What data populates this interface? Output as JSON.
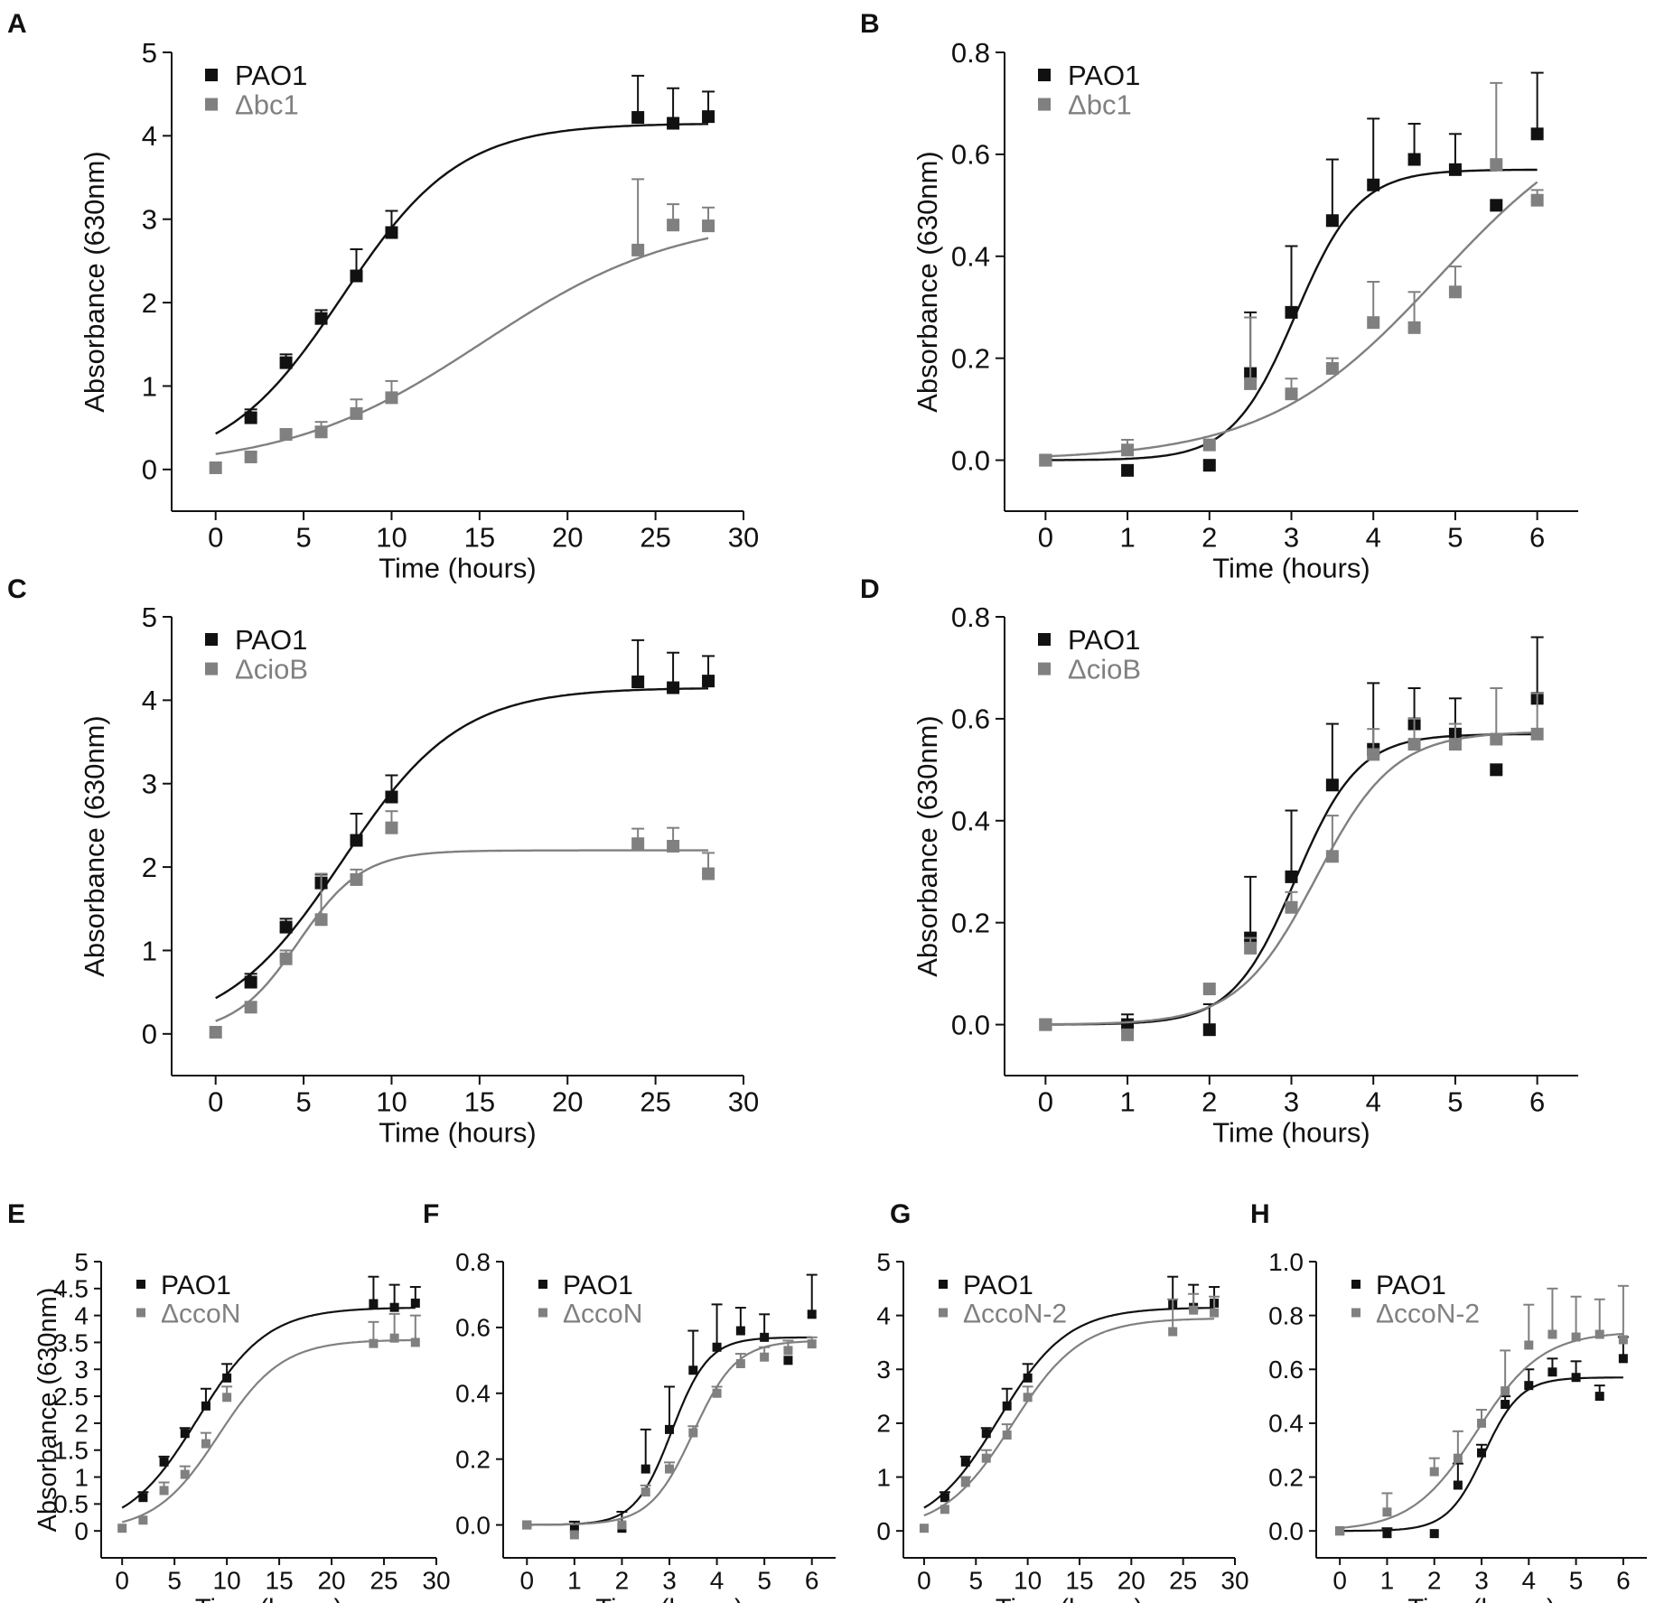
{
  "colors": {
    "pao1": "#111111",
    "mutant": "#808080",
    "axis": "#111111"
  },
  "chart_data": [
    {
      "panel": "A",
      "type": "scatter",
      "xlabel": "Time (hours)",
      "ylabel": "Absorbance (630nm)",
      "xlim": [
        -2.5,
        30
      ],
      "ylim": [
        -0.5,
        5
      ],
      "xticks": [
        0,
        5,
        10,
        15,
        20,
        25,
        30
      ],
      "xtick_labels": [
        "0",
        "5",
        "10",
        "15",
        "20",
        "25",
        "30"
      ],
      "yticks": [
        0,
        1,
        2,
        3,
        4,
        5
      ],
      "ytick_labels": [
        "0",
        "1",
        "2",
        "3",
        "4",
        "5"
      ],
      "legend": [
        "PAO1",
        "Δbc1"
      ],
      "series": [
        {
          "name": "PAO1",
          "x": [
            2,
            4,
            6,
            8,
            10,
            24,
            26,
            28
          ],
          "y": [
            0.62,
            1.28,
            1.81,
            2.32,
            2.84,
            4.22,
            4.15,
            4.23
          ],
          "err": [
            0.1,
            0.1,
            0.1,
            0.32,
            0.26,
            0.5,
            0.42,
            0.3
          ],
          "fit": {
            "bottom": 0,
            "top": 4.15,
            "x50": 7.2,
            "k": 0.3
          }
        },
        {
          "name": "Δbc1",
          "x": [
            0,
            2,
            4,
            6,
            8,
            10,
            24,
            26,
            28
          ],
          "y": [
            0.02,
            0.15,
            0.42,
            0.45,
            0.67,
            0.86,
            2.63,
            2.93,
            2.92
          ],
          "err": [
            0,
            0,
            0.06,
            0.12,
            0.17,
            0.2,
            0.85,
            0.25,
            0.22
          ],
          "fit": {
            "bottom": 0,
            "top": 3.05,
            "x50": 15.2,
            "k": 0.18
          }
        }
      ]
    },
    {
      "panel": "B",
      "type": "scatter",
      "xlabel": "Time (hours)",
      "ylabel": "Absorbance (630nm)",
      "xlim": [
        -0.5,
        6.5
      ],
      "ylim": [
        -0.1,
        0.8
      ],
      "xticks": [
        0,
        1,
        2,
        3,
        4,
        5,
        6
      ],
      "xtick_labels": [
        "0",
        "1",
        "2",
        "3",
        "4",
        "5",
        "6"
      ],
      "yticks": [
        0,
        0.2,
        0.4,
        0.6,
        0.8
      ],
      "ytick_labels": [
        "0.0",
        "0.2",
        "0.4",
        "0.6",
        "0.8"
      ],
      "legend": [
        "PAO1",
        "Δbc1"
      ],
      "series": [
        {
          "name": "PAO1",
          "x": [
            0,
            1,
            2,
            2.5,
            3,
            3.5,
            4,
            4.5,
            5,
            5.5,
            6
          ],
          "y": [
            0,
            -0.02,
            -0.01,
            0.17,
            0.29,
            0.47,
            0.54,
            0.59,
            0.57,
            0.5,
            0.64
          ],
          "err": [
            0,
            0,
            0,
            0.12,
            0.13,
            0.12,
            0.13,
            0.07,
            0.07,
            0,
            0.12
          ],
          "fit": {
            "bottom": 0,
            "top": 0.57,
            "x50": 3.05,
            "k": 2.6
          }
        },
        {
          "name": "Δbc1",
          "x": [
            0,
            1,
            2,
            2.5,
            3,
            3.5,
            4,
            4.5,
            5,
            5.5,
            6
          ],
          "y": [
            0,
            0.02,
            0.03,
            0.15,
            0.13,
            0.18,
            0.27,
            0.26,
            0.33,
            0.58,
            0.51
          ],
          "err": [
            0,
            0.02,
            0,
            0.13,
            0.03,
            0.02,
            0.08,
            0.07,
            0.05,
            0.16,
            0.02
          ],
          "fit": {
            "bottom": 0,
            "top": 0.72,
            "x50": 4.8,
            "k": 0.95
          }
        }
      ]
    },
    {
      "panel": "C",
      "type": "scatter",
      "xlabel": "Time (hours)",
      "ylabel": "Absorbance (630nm)",
      "xlim": [
        -2.5,
        30
      ],
      "ylim": [
        -0.5,
        5
      ],
      "xticks": [
        0,
        5,
        10,
        15,
        20,
        25,
        30
      ],
      "xtick_labels": [
        "0",
        "5",
        "10",
        "15",
        "20",
        "25",
        "30"
      ],
      "yticks": [
        0,
        1,
        2,
        3,
        4,
        5
      ],
      "ytick_labels": [
        "0",
        "1",
        "2",
        "3",
        "4",
        "5"
      ],
      "legend": [
        "PAO1",
        "ΔcioB"
      ],
      "series": [
        {
          "name": "PAO1",
          "x": [
            2,
            4,
            6,
            8,
            10,
            24,
            26,
            28
          ],
          "y": [
            0.62,
            1.28,
            1.81,
            2.32,
            2.84,
            4.22,
            4.15,
            4.23
          ],
          "err": [
            0.1,
            0.1,
            0.1,
            0.32,
            0.26,
            0.5,
            0.42,
            0.3
          ],
          "fit": {
            "bottom": 0,
            "top": 4.15,
            "x50": 7.2,
            "k": 0.3
          }
        },
        {
          "name": "ΔcioB",
          "x": [
            0,
            2,
            4,
            6,
            8,
            10,
            24,
            26,
            28
          ],
          "y": [
            0.02,
            0.32,
            0.9,
            1.37,
            1.85,
            2.47,
            2.28,
            2.25,
            1.92
          ],
          "err": [
            0,
            0,
            0.1,
            0.55,
            0.12,
            0.2,
            0.18,
            0.22,
            0.25
          ],
          "fit": {
            "bottom": 0,
            "top": 2.2,
            "x50": 4.7,
            "k": 0.55
          }
        }
      ]
    },
    {
      "panel": "D",
      "type": "scatter",
      "xlabel": "Time (hours)",
      "ylabel": "Absorbance (630nm)",
      "xlim": [
        -0.5,
        6.5
      ],
      "ylim": [
        -0.1,
        0.8
      ],
      "xticks": [
        0,
        1,
        2,
        3,
        4,
        5,
        6
      ],
      "xtick_labels": [
        "0",
        "1",
        "2",
        "3",
        "4",
        "5",
        "6"
      ],
      "yticks": [
        0,
        0.2,
        0.4,
        0.6,
        0.8
      ],
      "ytick_labels": [
        "0.0",
        "0.2",
        "0.4",
        "0.6",
        "0.8"
      ],
      "legend": [
        "PAO1",
        "ΔcioB"
      ],
      "series": [
        {
          "name": "PAO1",
          "x": [
            0,
            1,
            2,
            2.5,
            3,
            3.5,
            4,
            4.5,
            5,
            5.5,
            6
          ],
          "y": [
            0,
            0,
            -0.01,
            0.17,
            0.29,
            0.47,
            0.54,
            0.59,
            0.57,
            0.5,
            0.64
          ],
          "err": [
            0,
            0.02,
            0.05,
            0.12,
            0.13,
            0.12,
            0.13,
            0.07,
            0.07,
            0,
            0.12
          ],
          "fit": {
            "bottom": 0,
            "top": 0.57,
            "x50": 3.05,
            "k": 2.6
          }
        },
        {
          "name": "ΔcioB",
          "x": [
            0,
            1,
            2,
            2.5,
            3,
            3.5,
            4,
            4.5,
            5,
            5.5,
            6
          ],
          "y": [
            0,
            -0.02,
            0.07,
            0.15,
            0.23,
            0.33,
            0.53,
            0.55,
            0.55,
            0.56,
            0.57
          ],
          "err": [
            0,
            0,
            0,
            0.02,
            0.03,
            0.08,
            0.05,
            0.05,
            0.04,
            0.1,
            0.08
          ],
          "fit": {
            "bottom": 0,
            "top": 0.575,
            "x50": 3.3,
            "k": 2.1
          }
        }
      ]
    },
    {
      "panel": "E",
      "type": "scatter",
      "xlabel": "Time (hours)",
      "ylabel": "Absorbance (630nm)",
      "xlim": [
        -2,
        30
      ],
      "ylim": [
        -0.5,
        5
      ],
      "xticks": [
        0,
        5,
        10,
        15,
        20,
        25,
        30
      ],
      "xtick_labels": [
        "0",
        "5",
        "10",
        "15",
        "20",
        "25",
        "30"
      ],
      "yticks": [
        0,
        0.5,
        1,
        1.5,
        2,
        2.5,
        3,
        3.5,
        4,
        4.5,
        5
      ],
      "ytick_labels": [
        "0",
        "0.5",
        "1",
        "1.5",
        "2",
        "2.5",
        "3",
        "3.5",
        "4",
        "4.5",
        "5"
      ],
      "legend": [
        "PAO1",
        "ΔccoN"
      ],
      "series": [
        {
          "name": "PAO1",
          "x": [
            2,
            4,
            6,
            8,
            10,
            24,
            26,
            28
          ],
          "y": [
            0.62,
            1.28,
            1.81,
            2.32,
            2.84,
            4.22,
            4.15,
            4.23
          ],
          "err": [
            0.1,
            0.1,
            0.1,
            0.32,
            0.26,
            0.5,
            0.42,
            0.3
          ],
          "fit": {
            "bottom": 0,
            "top": 4.15,
            "x50": 7.2,
            "k": 0.3
          }
        },
        {
          "name": "ΔccoN",
          "x": [
            0,
            2,
            4,
            6,
            8,
            10,
            24,
            26,
            28
          ],
          "y": [
            0.05,
            0.2,
            0.75,
            1.05,
            1.62,
            2.48,
            3.48,
            3.58,
            3.5
          ],
          "err": [
            0,
            0,
            0.15,
            0.15,
            0.2,
            0.2,
            0.4,
            0.45,
            0.5
          ],
          "fit": {
            "bottom": 0,
            "top": 3.55,
            "x50": 9.2,
            "k": 0.33
          }
        }
      ]
    },
    {
      "panel": "F",
      "type": "scatter",
      "xlabel": "Time (hours)",
      "ylabel": "",
      "xlim": [
        -0.5,
        6.5
      ],
      "ylim": [
        -0.1,
        0.8
      ],
      "xticks": [
        0,
        1,
        2,
        3,
        4,
        5,
        6
      ],
      "xtick_labels": [
        "0",
        "1",
        "2",
        "3",
        "4",
        "5",
        "6"
      ],
      "yticks": [
        0,
        0.2,
        0.4,
        0.6,
        0.8
      ],
      "ytick_labels": [
        "0.0",
        "0.2",
        "0.4",
        "0.6",
        "0.8"
      ],
      "legend": [
        "PAO1",
        "ΔccoN"
      ],
      "series": [
        {
          "name": "PAO1",
          "x": [
            0,
            1,
            2,
            2.5,
            3,
            3.5,
            4,
            4.5,
            5,
            5.5,
            6
          ],
          "y": [
            0,
            -0.01,
            -0.01,
            0.17,
            0.29,
            0.47,
            0.54,
            0.59,
            0.57,
            0.5,
            0.64
          ],
          "err": [
            0,
            0.02,
            0.05,
            0.12,
            0.13,
            0.12,
            0.13,
            0.07,
            0.07,
            0,
            0.12
          ],
          "fit": {
            "bottom": 0,
            "top": 0.57,
            "x50": 3.05,
            "k": 2.6
          }
        },
        {
          "name": "ΔccoN",
          "x": [
            0,
            1,
            2,
            2.5,
            3,
            3.5,
            4,
            4.5,
            5,
            5.5,
            6
          ],
          "y": [
            0,
            -0.03,
            0,
            0.1,
            0.17,
            0.28,
            0.4,
            0.49,
            0.51,
            0.53,
            0.55
          ],
          "err": [
            0,
            0,
            0,
            0.02,
            0.02,
            0.02,
            0.02,
            0.03,
            0.03,
            0.03,
            0.02
          ],
          "fit": {
            "bottom": 0,
            "top": 0.56,
            "x50": 3.5,
            "k": 2.2
          }
        }
      ]
    },
    {
      "panel": "G",
      "type": "scatter",
      "xlabel": "Time (hours)",
      "ylabel": "",
      "xlim": [
        -2,
        30
      ],
      "ylim": [
        -0.5,
        5
      ],
      "xticks": [
        0,
        5,
        10,
        15,
        20,
        25,
        30
      ],
      "xtick_labels": [
        "0",
        "5",
        "10",
        "15",
        "20",
        "25",
        "30"
      ],
      "yticks": [
        0,
        1,
        2,
        3,
        4,
        5
      ],
      "ytick_labels": [
        "0",
        "1",
        "2",
        "3",
        "4",
        "5"
      ],
      "legend": [
        "PAO1",
        "ΔccoN-2"
      ],
      "series": [
        {
          "name": "PAO1",
          "x": [
            2,
            4,
            6,
            8,
            10,
            24,
            26,
            28
          ],
          "y": [
            0.62,
            1.28,
            1.81,
            2.32,
            2.84,
            4.22,
            4.15,
            4.23
          ],
          "err": [
            0.1,
            0.1,
            0.1,
            0.32,
            0.26,
            0.5,
            0.42,
            0.3
          ],
          "fit": {
            "bottom": 0,
            "top": 4.15,
            "x50": 7.2,
            "k": 0.3
          }
        },
        {
          "name": "ΔccoN-2",
          "x": [
            0,
            2,
            4,
            6,
            8,
            10,
            24,
            26,
            28
          ],
          "y": [
            0.05,
            0.4,
            0.9,
            1.35,
            1.78,
            2.48,
            3.7,
            4.1,
            4.05
          ],
          "err": [
            0,
            0,
            0.1,
            0.15,
            0.2,
            0.2,
            0.6,
            0.3,
            0.3
          ],
          "fit": {
            "bottom": 0,
            "top": 3.95,
            "x50": 8.5,
            "k": 0.3
          }
        }
      ]
    },
    {
      "panel": "H",
      "type": "scatter",
      "xlabel": "Time (hours)",
      "ylabel": "",
      "xlim": [
        -0.5,
        6.5
      ],
      "ylim": [
        -0.1,
        1.0
      ],
      "xticks": [
        0,
        1,
        2,
        3,
        4,
        5,
        6
      ],
      "xtick_labels": [
        "0",
        "1",
        "2",
        "3",
        "4",
        "5",
        "6"
      ],
      "yticks": [
        0,
        0.2,
        0.4,
        0.6,
        0.8,
        1.0
      ],
      "ytick_labels": [
        "0.0",
        "0.2",
        "0.4",
        "0.6",
        "0.8",
        "1.0"
      ],
      "legend": [
        "PAO1",
        "ΔccoN-2"
      ],
      "series": [
        {
          "name": "PAO1",
          "x": [
            0,
            1,
            2,
            2.5,
            3,
            3.5,
            4,
            4.5,
            5,
            5.5,
            6
          ],
          "y": [
            0,
            -0.01,
            -0.01,
            0.17,
            0.29,
            0.47,
            0.54,
            0.59,
            0.57,
            0.5,
            0.64
          ],
          "err": [
            0,
            0.02,
            0,
            0.08,
            0.03,
            0.03,
            0.06,
            0.05,
            0.06,
            0.04,
            0.08
          ],
          "fit": {
            "bottom": 0,
            "top": 0.57,
            "x50": 3.05,
            "k": 2.6
          }
        },
        {
          "name": "ΔccoN-2",
          "x": [
            0,
            1,
            2,
            2.5,
            3,
            3.5,
            4,
            4.5,
            5,
            5.5,
            6
          ],
          "y": [
            0,
            0.07,
            0.22,
            0.27,
            0.4,
            0.52,
            0.69,
            0.73,
            0.72,
            0.73,
            0.71
          ],
          "err": [
            0,
            0.07,
            0.05,
            0.1,
            0.05,
            0.15,
            0.15,
            0.17,
            0.15,
            0.13,
            0.2
          ],
          "fit": {
            "bottom": 0,
            "top": 0.74,
            "x50": 2.9,
            "k": 1.45
          }
        }
      ]
    }
  ]
}
